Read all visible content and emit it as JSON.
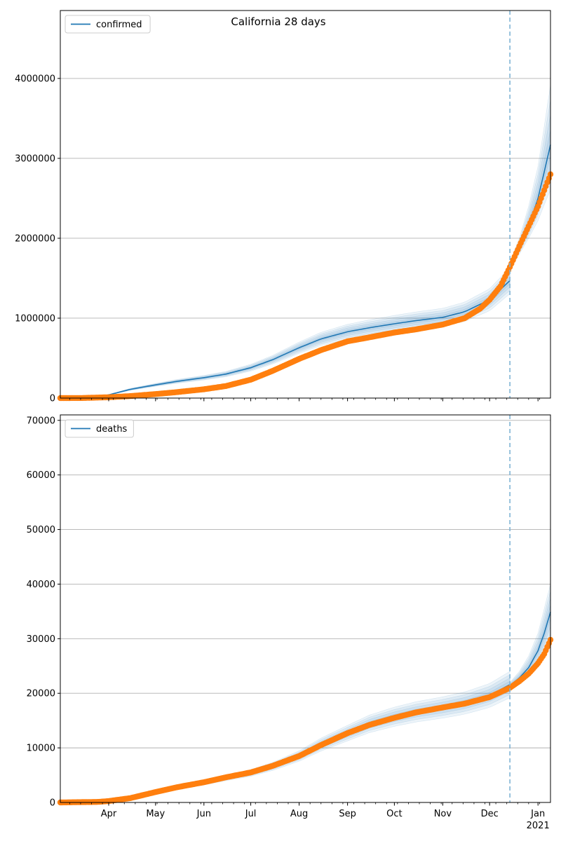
{
  "title": "California 28 days",
  "chart_data": [
    {
      "type": "line",
      "legend": {
        "label": "confirmed",
        "placement": "top-left"
      },
      "ylim": [
        0,
        4850000
      ],
      "yticks": [
        0,
        1000000,
        2000000,
        3000000,
        4000000
      ],
      "ytick_labels": [
        "0",
        "1000000",
        "2000000",
        "3000000",
        "4000000"
      ],
      "grid": "y",
      "forecast_start": "2020-12-14",
      "observed_points": [
        [
          "2020-03-01",
          0
        ],
        [
          "2020-03-15",
          1000
        ],
        [
          "2020-04-01",
          10000
        ],
        [
          "2020-04-15",
          25000
        ],
        [
          "2020-05-01",
          50000
        ],
        [
          "2020-05-15",
          75000
        ],
        [
          "2020-06-01",
          110000
        ],
        [
          "2020-06-15",
          150000
        ],
        [
          "2020-07-01",
          230000
        ],
        [
          "2020-07-15",
          340000
        ],
        [
          "2020-08-01",
          490000
        ],
        [
          "2020-08-15",
          600000
        ],
        [
          "2020-09-01",
          710000
        ],
        [
          "2020-09-15",
          760000
        ],
        [
          "2020-10-01",
          820000
        ],
        [
          "2020-10-15",
          860000
        ],
        [
          "2020-11-01",
          920000
        ],
        [
          "2020-11-15",
          1000000
        ],
        [
          "2020-11-25",
          1120000
        ],
        [
          "2020-12-01",
          1230000
        ],
        [
          "2020-12-08",
          1400000
        ],
        [
          "2020-12-14",
          1640000
        ],
        [
          "2020-12-20",
          1900000
        ],
        [
          "2020-12-26",
          2150000
        ],
        [
          "2021-01-01",
          2400000
        ],
        [
          "2021-01-05",
          2600000
        ],
        [
          "2021-01-09",
          2800000
        ]
      ],
      "fit_points": [
        [
          "2020-03-01",
          0
        ],
        [
          "2020-03-20",
          5000
        ],
        [
          "2020-04-01",
          40000
        ],
        [
          "2020-04-15",
          110000
        ],
        [
          "2020-05-01",
          165000
        ],
        [
          "2020-05-15",
          210000
        ],
        [
          "2020-06-01",
          255000
        ],
        [
          "2020-06-15",
          300000
        ],
        [
          "2020-07-01",
          380000
        ],
        [
          "2020-07-15",
          480000
        ],
        [
          "2020-08-01",
          630000
        ],
        [
          "2020-08-15",
          740000
        ],
        [
          "2020-09-01",
          830000
        ],
        [
          "2020-09-15",
          880000
        ],
        [
          "2020-10-01",
          930000
        ],
        [
          "2020-10-15",
          970000
        ],
        [
          "2020-11-01",
          1010000
        ],
        [
          "2020-11-15",
          1080000
        ],
        [
          "2020-12-01",
          1230000
        ],
        [
          "2020-12-14",
          1470000
        ]
      ],
      "forecast_points": [
        [
          "2020-12-14",
          1640000
        ],
        [
          "2020-12-20",
          1880000
        ],
        [
          "2020-12-26",
          2150000
        ],
        [
          "2021-01-01",
          2500000
        ],
        [
          "2021-01-05",
          2830000
        ],
        [
          "2021-01-09",
          3170000
        ]
      ],
      "forecast_band_upper": [
        [
          "2020-12-14",
          1700000
        ],
        [
          "2020-12-20",
          2000000
        ],
        [
          "2020-12-26",
          2400000
        ],
        [
          "2021-01-01",
          2900000
        ],
        [
          "2021-01-05",
          3400000
        ],
        [
          "2021-01-09",
          3920000
        ]
      ],
      "forecast_band_lower": [
        [
          "2020-12-14",
          1600000
        ],
        [
          "2020-12-20",
          1800000
        ],
        [
          "2020-12-26",
          2000000
        ],
        [
          "2021-01-01",
          2220000
        ],
        [
          "2021-01-05",
          2420000
        ],
        [
          "2021-01-09",
          2600000
        ]
      ]
    },
    {
      "type": "line",
      "legend": {
        "label": "deaths",
        "placement": "top-left"
      },
      "ylim": [
        0,
        71000
      ],
      "yticks": [
        0,
        10000,
        20000,
        30000,
        40000,
        50000,
        60000,
        70000
      ],
      "ytick_labels": [
        "0",
        "10000",
        "20000",
        "30000",
        "40000",
        "50000",
        "60000",
        "70000"
      ],
      "grid": "y",
      "forecast_start": "2020-12-14",
      "observed_points": [
        [
          "2020-03-01",
          0
        ],
        [
          "2020-03-25",
          100
        ],
        [
          "2020-04-01",
          250
        ],
        [
          "2020-04-15",
          800
        ],
        [
          "2020-05-01",
          1900
        ],
        [
          "2020-05-15",
          2800
        ],
        [
          "2020-06-01",
          3700
        ],
        [
          "2020-06-15",
          4600
        ],
        [
          "2020-07-01",
          5500
        ],
        [
          "2020-07-15",
          6700
        ],
        [
          "2020-08-01",
          8500
        ],
        [
          "2020-08-15",
          10500
        ],
        [
          "2020-09-01",
          12700
        ],
        [
          "2020-09-15",
          14200
        ],
        [
          "2020-10-01",
          15500
        ],
        [
          "2020-10-15",
          16500
        ],
        [
          "2020-11-01",
          17400
        ],
        [
          "2020-11-15",
          18100
        ],
        [
          "2020-12-01",
          19300
        ],
        [
          "2020-12-14",
          21000
        ],
        [
          "2020-12-20",
          22200
        ],
        [
          "2020-12-26",
          23600
        ],
        [
          "2021-01-01",
          25500
        ],
        [
          "2021-01-05",
          27200
        ],
        [
          "2021-01-09",
          29800
        ]
      ],
      "fit_points": [
        [
          "2020-03-01",
          0
        ],
        [
          "2020-03-25",
          100
        ],
        [
          "2020-04-01",
          300
        ],
        [
          "2020-04-15",
          900
        ],
        [
          "2020-05-01",
          1900
        ],
        [
          "2020-05-15",
          2700
        ],
        [
          "2020-06-01",
          3600
        ],
        [
          "2020-06-15",
          4500
        ],
        [
          "2020-07-01",
          5400
        ],
        [
          "2020-07-15",
          6600
        ],
        [
          "2020-08-01",
          8500
        ],
        [
          "2020-08-15",
          10600
        ],
        [
          "2020-09-01",
          12700
        ],
        [
          "2020-09-15",
          14400
        ],
        [
          "2020-10-01",
          15700
        ],
        [
          "2020-10-15",
          16600
        ],
        [
          "2020-11-01",
          17400
        ],
        [
          "2020-11-15",
          18200
        ],
        [
          "2020-12-01",
          19600
        ],
        [
          "2020-12-14",
          21600
        ]
      ],
      "forecast_points": [
        [
          "2020-12-14",
          21400
        ],
        [
          "2020-12-20",
          22800
        ],
        [
          "2020-12-26",
          24700
        ],
        [
          "2021-01-01",
          27800
        ],
        [
          "2021-01-05",
          31000
        ],
        [
          "2021-01-09",
          34900
        ]
      ],
      "forecast_band_upper": [
        [
          "2020-12-14",
          22000
        ],
        [
          "2020-12-20",
          24000
        ],
        [
          "2020-12-26",
          26800
        ],
        [
          "2021-01-01",
          31000
        ],
        [
          "2021-01-05",
          35500
        ],
        [
          "2021-01-09",
          40000
        ]
      ],
      "forecast_band_lower": [
        [
          "2020-12-14",
          21000
        ],
        [
          "2020-12-20",
          22000
        ],
        [
          "2020-12-26",
          23200
        ],
        [
          "2021-01-01",
          25000
        ],
        [
          "2021-01-05",
          27000
        ],
        [
          "2021-01-09",
          29500
        ]
      ]
    }
  ],
  "x_axis": {
    "range": [
      "2020-03-01",
      "2021-01-09"
    ],
    "ticks": [
      {
        "date": "2020-04-01",
        "label": "Apr"
      },
      {
        "date": "2020-05-01",
        "label": "May"
      },
      {
        "date": "2020-06-01",
        "label": "Jun"
      },
      {
        "date": "2020-07-01",
        "label": "Jul"
      },
      {
        "date": "2020-08-01",
        "label": "Aug"
      },
      {
        "date": "2020-09-01",
        "label": "Sep"
      },
      {
        "date": "2020-10-01",
        "label": "Oct"
      },
      {
        "date": "2020-11-01",
        "label": "Nov"
      },
      {
        "date": "2020-12-01",
        "label": "Dec"
      },
      {
        "date": "2021-01-01",
        "label": "Jan"
      }
    ],
    "year_label": "2021"
  },
  "colors": {
    "fit_line": "#1f77b4",
    "band": "#1f77b4",
    "observed": "#ff7f0e",
    "grid": "#b0b0b0",
    "forecast_line": "#7fb3d5"
  }
}
